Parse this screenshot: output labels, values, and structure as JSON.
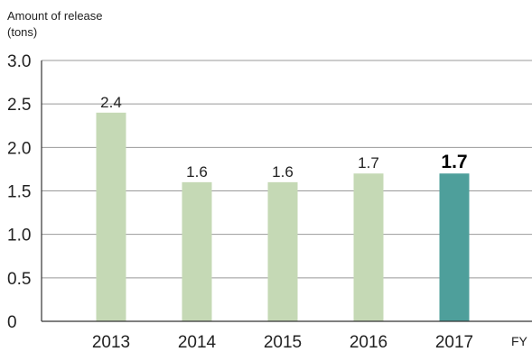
{
  "chart_data": {
    "type": "bar",
    "ylabel_lines": [
      "Amount of release",
      "(tons)"
    ],
    "xlabel": "FY",
    "categories": [
      "2013",
      "2014",
      "2015",
      "2016",
      "2017"
    ],
    "values": [
      2.4,
      1.6,
      1.6,
      1.7,
      1.7
    ],
    "value_labels": [
      "2.4",
      "1.6",
      "1.6",
      "1.7",
      "1.7"
    ],
    "highlight_index": 4,
    "ylim": [
      0,
      3.0
    ],
    "yticks": [
      0,
      0.5,
      1.0,
      1.5,
      2.0,
      2.5,
      3.0
    ],
    "ytick_labels": [
      "0",
      "0.5",
      "1.0",
      "1.5",
      "2.0",
      "2.5",
      "3.0"
    ],
    "grid": true,
    "colors": {
      "bar": "#c5d9b5",
      "highlight": "#4e9f9b",
      "grid": "#999999",
      "axis": "#333333"
    }
  }
}
